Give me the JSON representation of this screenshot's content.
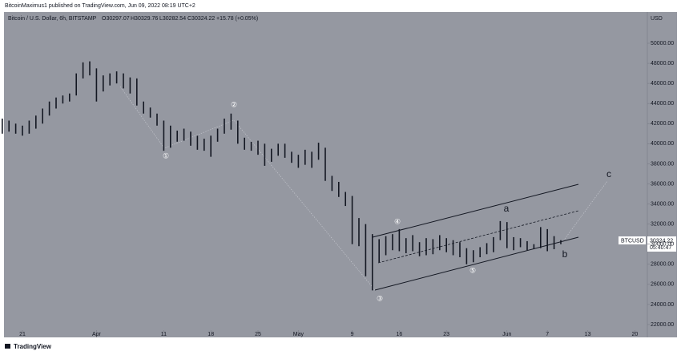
{
  "published": "BitcoinMaximus1 published on TradingView.com, Jun 09, 2022 08:19 UTC+2",
  "footer": "TradingView",
  "chart_data": {
    "type": "ohlc",
    "title": "Bitcoin / U.S. Dollar, 6h, BITSTAMP",
    "legend_values": [
      "O30297.07",
      "H30329.76",
      "L30282.54",
      "C30324.22",
      "+15.78 (+0.05%)"
    ],
    "currency": "USD",
    "price_label": {
      "symbol": "BTCUSD",
      "price": "30324.22",
      "countdown": "05:40:47"
    },
    "color": "#131722",
    "x": [
      -3,
      -2,
      -1,
      0,
      1,
      2,
      3,
      4,
      5,
      6,
      7,
      8,
      9,
      10,
      11,
      12,
      13,
      14,
      15,
      16,
      17,
      18,
      19,
      20,
      21,
      22,
      23,
      24,
      25,
      26,
      27,
      28,
      29,
      30,
      31,
      32,
      33,
      34,
      35,
      36,
      37,
      38,
      39,
      40,
      41,
      42,
      43,
      44,
      45,
      46,
      47,
      48,
      49,
      50,
      51,
      52,
      53,
      54,
      55,
      56,
      57,
      58,
      59,
      60,
      61,
      62,
      63,
      64,
      65,
      66,
      67,
      68,
      69,
      70,
      71,
      72,
      73,
      74,
      75,
      76,
      77,
      78,
      79,
      80
    ],
    "high": [
      42500,
      42300,
      42000,
      41800,
      42300,
      42800,
      43500,
      44200,
      44600,
      44800,
      45000,
      47000,
      48100,
      48200,
      47500,
      46800,
      47000,
      47200,
      47000,
      46600,
      46500,
      44200,
      43600,
      43000,
      42300,
      41800,
      41300,
      41500,
      41200,
      40800,
      40500,
      40800,
      41500,
      42500,
      43000,
      42300,
      40600,
      40200,
      40300,
      40000,
      39500,
      40000,
      40000,
      39200,
      38900,
      39400,
      39200,
      40100,
      39600,
      36800,
      36200,
      35200,
      34800,
      32600,
      32000,
      31000,
      30500,
      30800,
      31000,
      31500,
      30600,
      30900,
      30200,
      30600,
      30500,
      30900,
      30600,
      30400,
      30200,
      29600,
      29400,
      29700,
      30100,
      30700,
      32300,
      32200,
      30700,
      30600,
      30300,
      30000,
      31700,
      31500,
      30800,
      30400
    ],
    "low": [
      41000,
      41200,
      41000,
      40800,
      41000,
      41500,
      42000,
      42800,
      43500,
      44000,
      44200,
      44800,
      46500,
      46800,
      44200,
      45200,
      45800,
      46000,
      45500,
      45000,
      43800,
      43000,
      42600,
      41800,
      39300,
      39600,
      40200,
      40300,
      39800,
      39400,
      39300,
      38700,
      40200,
      41000,
      41400,
      40000,
      39400,
      39300,
      38900,
      37800,
      38200,
      38800,
      38600,
      38100,
      37600,
      37900,
      37600,
      38400,
      36300,
      35300,
      34700,
      33800,
      30000,
      29800,
      26800,
      25400,
      28200,
      28900,
      29400,
      29300,
      29100,
      29300,
      28800,
      28900,
      29000,
      29400,
      29200,
      28900,
      28700,
      28000,
      28200,
      28700,
      29000,
      29200,
      30400,
      29600,
      29400,
      29700,
      29400,
      29500,
      29600,
      29300,
      29500,
      30000
    ],
    "xlim": [
      -2.74,
      92.86
    ],
    "xticks": [
      {
        "value": 0,
        "label": "21"
      },
      {
        "value": 11,
        "label": "Apr"
      },
      {
        "value": 21,
        "label": "11"
      },
      {
        "value": 28,
        "label": "18"
      },
      {
        "value": 35,
        "label": "25"
      },
      {
        "value": 41,
        "label": "May"
      },
      {
        "value": 49,
        "label": "9"
      },
      {
        "value": 56,
        "label": "16"
      },
      {
        "value": 63,
        "label": "23"
      },
      {
        "value": 72,
        "label": "Jun"
      },
      {
        "value": 78,
        "label": "7"
      },
      {
        "value": 84,
        "label": "13"
      },
      {
        "value": 91,
        "label": "20"
      }
    ],
    "ylim": [
      21440,
      53110
    ],
    "yticks": [
      {
        "value": 22000,
        "label": "22000.00"
      },
      {
        "value": 24000,
        "label": "24000.00"
      },
      {
        "value": 26000,
        "label": "26000.00"
      },
      {
        "value": 28000,
        "label": "28000.00"
      },
      {
        "value": 30000,
        "label": "30000.00"
      },
      {
        "value": 32000,
        "label": "32000.00"
      },
      {
        "value": 34000,
        "label": "34000.00"
      },
      {
        "value": 36000,
        "label": "36000.00"
      },
      {
        "value": 38000,
        "label": "38000.00"
      },
      {
        "value": 40000,
        "label": "40000.00"
      },
      {
        "value": 42000,
        "label": "42000.00"
      },
      {
        "value": 44000,
        "label": "44000.00"
      },
      {
        "value": 46000,
        "label": "46000.00"
      },
      {
        "value": 48000,
        "label": "48000.00"
      },
      {
        "value": 50000,
        "label": "50000.00"
      }
    ],
    "annotations": [
      "①",
      "②",
      "③",
      "④",
      "⑤",
      "a",
      "b",
      "c"
    ]
  }
}
